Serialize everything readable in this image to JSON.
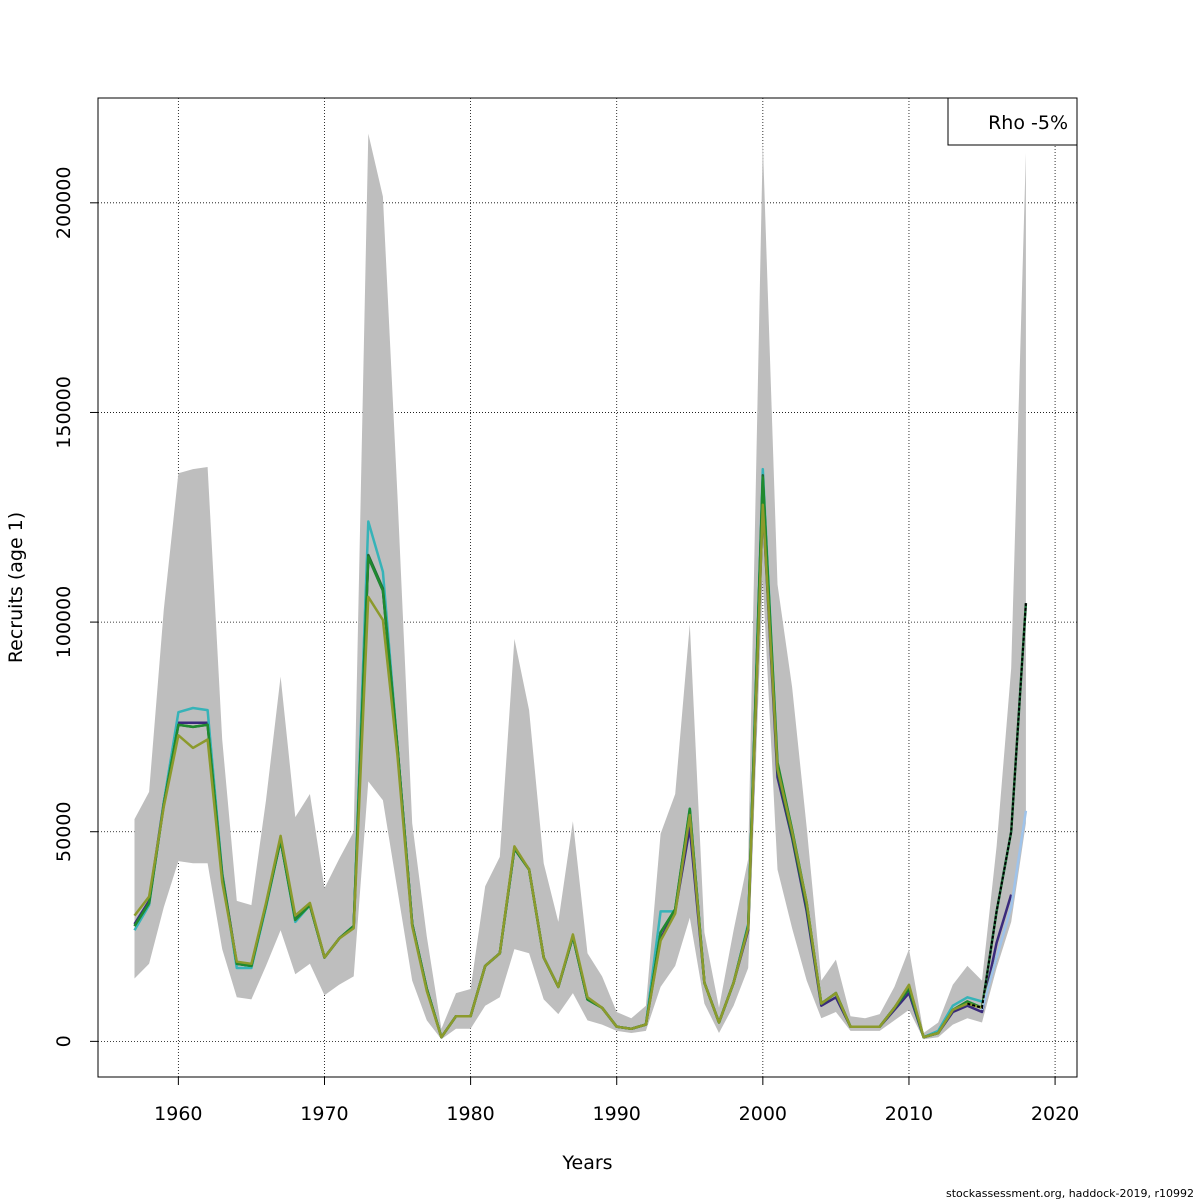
{
  "chart_data": {
    "type": "line",
    "xlabel": "Years",
    "ylabel": "Recruits (age 1)",
    "xlim": [
      1954.5,
      2021.5
    ],
    "ylim": [
      -8500,
      225000
    ],
    "x_ticks": [
      1960,
      1970,
      1980,
      1990,
      2000,
      2010,
      2020
    ],
    "y_ticks": [
      0,
      50000,
      100000,
      150000,
      200000
    ],
    "grid": true,
    "legend": {
      "position": "top-right",
      "text": "Rho -5%"
    },
    "footer": "stockassessment.org, haddock-2019, r10992",
    "confidence_band": {
      "years": [
        1957,
        1958,
        1959,
        1960,
        1961,
        1962,
        1963,
        1964,
        1965,
        1966,
        1967,
        1968,
        1969,
        1970,
        1971,
        1972,
        1973,
        1974,
        1975,
        1976,
        1977,
        1978,
        1979,
        1980,
        1981,
        1982,
        1983,
        1984,
        1985,
        1986,
        1987,
        1988,
        1989,
        1990,
        1991,
        1992,
        1993,
        1994,
        1995,
        1996,
        1997,
        1998,
        1999,
        2000,
        2001,
        2002,
        2003,
        2004,
        2005,
        2006,
        2007,
        2008,
        2009,
        2010,
        2011,
        2012,
        2013,
        2014,
        2015,
        2016,
        2017,
        2018
      ],
      "lower": [
        15000,
        18500,
        32000,
        43000,
        42500,
        42500,
        22000,
        10500,
        10000,
        18000,
        26500,
        16000,
        18500,
        11000,
        13500,
        15500,
        62000,
        57500,
        36000,
        14500,
        5000,
        500,
        3000,
        3000,
        8500,
        10500,
        22000,
        21000,
        10000,
        6500,
        11500,
        5000,
        4000,
        2500,
        2000,
        2500,
        13000,
        18000,
        29500,
        9000,
        2000,
        8500,
        17500,
        110000,
        41000,
        27000,
        14500,
        5500,
        7000,
        2500,
        2500,
        2500,
        5000,
        7500,
        500,
        1000,
        4000,
        5500,
        4500,
        17500,
        28500,
        52000
      ],
      "upper": [
        53000,
        59500,
        103000,
        135500,
        136500,
        137000,
        72000,
        33500,
        32500,
        57500,
        87000,
        53500,
        59000,
        36500,
        43500,
        50000,
        216500,
        201500,
        130000,
        52000,
        25000,
        3000,
        11500,
        12500,
        37000,
        44000,
        96000,
        79000,
        42500,
        28500,
        52500,
        21000,
        15500,
        7000,
        5500,
        8500,
        49500,
        59000,
        99500,
        26000,
        8000,
        26500,
        43500,
        214500,
        109000,
        84500,
        51000,
        14500,
        19500,
        6000,
        5500,
        6500,
        13000,
        22000,
        2000,
        4500,
        13500,
        18000,
        14500,
        46500,
        89000,
        212000
      ]
    },
    "series": [
      {
        "color": "#3a2a7c",
        "x": [
          1957,
          1958,
          1959,
          1960,
          1961,
          1962,
          1963,
          1964,
          1965,
          1966,
          1967,
          1968,
          1969,
          1970,
          1971,
          1972,
          1973,
          1974,
          1975,
          1976,
          1977,
          1978,
          1979,
          1980,
          1981,
          1982,
          1983,
          1984,
          1985,
          1986,
          1987,
          1988,
          1989,
          1990,
          1991,
          1992,
          1993,
          1994,
          1995,
          1996,
          1997,
          1998,
          1999,
          2000,
          2001,
          2002,
          2003,
          2004,
          2005,
          2006,
          2007,
          2008,
          2009,
          2010,
          2011,
          2012,
          2013,
          2014,
          2015,
          2016,
          2017
        ],
        "values": [
          28000,
          33500,
          57000,
          76000,
          76000,
          76000,
          40000,
          18500,
          18000,
          32500,
          48000,
          29500,
          32500,
          20000,
          24500,
          27500,
          115500,
          107500,
          70000,
          28000,
          12500,
          1000,
          6000,
          6000,
          18000,
          21000,
          46000,
          41000,
          20000,
          13000,
          25000,
          10000,
          8000,
          3500,
          3000,
          4000,
          24500,
          31000,
          51000,
          14000,
          4500,
          14000,
          26500,
          128000,
          63000,
          48500,
          31000,
          8500,
          10500,
          3500,
          3500,
          3500,
          7500,
          11500,
          1000,
          2000,
          7000,
          8500,
          7000,
          23500,
          35000
        ]
      },
      {
        "color": "#36b3b8",
        "x": [
          1957,
          1958,
          1959,
          1960,
          1961,
          1962,
          1963,
          1964,
          1965,
          1966,
          1967,
          1968,
          1969,
          1970,
          1971,
          1972,
          1973,
          1974,
          1975,
          1976,
          1977,
          1978,
          1979,
          1980,
          1981,
          1982,
          1983,
          1984,
          1985,
          1986,
          1987,
          1988,
          1989,
          1990,
          1991,
          1992,
          1993,
          1994,
          1995,
          1996,
          1997,
          1998,
          1999,
          2000,
          2001,
          2002,
          2003,
          2004,
          2005,
          2006,
          2007,
          2008,
          2009,
          2010,
          2011,
          2012,
          2013,
          2014,
          2015
        ],
        "values": [
          26500,
          32500,
          57000,
          78500,
          79500,
          79000,
          40000,
          17500,
          17500,
          32000,
          48000,
          28500,
          32500,
          20000,
          24500,
          27500,
          124000,
          112000,
          70000,
          28000,
          12500,
          1000,
          6000,
          6000,
          18000,
          21000,
          46000,
          41000,
          20000,
          13000,
          25000,
          10000,
          8000,
          3500,
          3000,
          4000,
          31000,
          31000,
          55500,
          14000,
          4500,
          14000,
          28000,
          136500,
          66000,
          50500,
          33000,
          9000,
          11500,
          3500,
          3500,
          3500,
          8000,
          12500,
          1000,
          2500,
          8500,
          10500,
          9500
        ]
      },
      {
        "color": "#1f6b3a",
        "x": [
          1957,
          1958,
          1959,
          1960,
          1961,
          1962,
          1963,
          1964,
          1965,
          1966,
          1967,
          1968,
          1969,
          1970,
          1971,
          1972,
          1973,
          1974,
          1975,
          1976,
          1977,
          1978,
          1979,
          1980,
          1981,
          1982,
          1983,
          1984,
          1985,
          1986,
          1987,
          1988,
          1989,
          1990,
          1991,
          1992,
          1993,
          1994,
          1995,
          1996,
          1997,
          1998,
          1999,
          2000,
          2001,
          2002,
          2003,
          2004,
          2005,
          2006,
          2007,
          2008,
          2009,
          2010,
          2011,
          2012,
          2013,
          2014,
          2015,
          2016,
          2017,
          2018
        ],
        "values": [
          27500,
          33000,
          56500,
          75500,
          75000,
          75500,
          39500,
          18500,
          18000,
          32500,
          48000,
          29000,
          32500,
          20000,
          24500,
          27500,
          116000,
          108000,
          70000,
          28000,
          12500,
          1000,
          6000,
          6000,
          18000,
          21000,
          46000,
          41000,
          20000,
          13000,
          25000,
          10000,
          8000,
          3500,
          3000,
          4000,
          26000,
          31500,
          55000,
          14000,
          4500,
          14000,
          27500,
          135000,
          64500,
          49000,
          32000,
          9000,
          11500,
          3500,
          3500,
          3500,
          8000,
          12500,
          1000,
          2000,
          7500,
          9500,
          8000,
          31000,
          50000,
          104500
        ]
      },
      {
        "color": "#1f8a2e",
        "x": [
          1957,
          1958,
          1959,
          1960,
          1961,
          1962,
          1963,
          1964,
          1965,
          1966,
          1967,
          1968,
          1969,
          1970,
          1971,
          1972,
          1973,
          1974,
          1975,
          1976,
          1977,
          1978,
          1979,
          1980,
          1981,
          1982,
          1983,
          1984,
          1985,
          1986,
          1987,
          1988,
          1989,
          1990,
          1991,
          1992,
          1993,
          1994,
          1995,
          1996,
          1997,
          1998,
          1999,
          2000,
          2001,
          2002,
          2003,
          2004,
          2005,
          2006,
          2007,
          2008,
          2009,
          2010,
          2011,
          2012,
          2013,
          2014,
          2015
        ],
        "values": [
          27500,
          33000,
          56500,
          75500,
          75000,
          75500,
          39500,
          18500,
          18000,
          32500,
          48000,
          29000,
          32500,
          20000,
          24500,
          27500,
          115500,
          107500,
          70000,
          28000,
          12500,
          1000,
          6000,
          6000,
          18000,
          21000,
          46000,
          41000,
          20000,
          13000,
          25000,
          10000,
          8000,
          3500,
          3000,
          4000,
          26000,
          31500,
          55500,
          14000,
          4500,
          14000,
          27500,
          134500,
          66500,
          50500,
          33000,
          9000,
          11500,
          3500,
          3500,
          3500,
          8000,
          13000,
          1000,
          2000,
          7500,
          9500,
          8000
        ]
      },
      {
        "color": "#8c9a2c",
        "x": [
          1957,
          1958,
          1959,
          1960,
          1961,
          1962,
          1963,
          1964,
          1965,
          1966,
          1967,
          1968,
          1969,
          1970,
          1971,
          1972,
          1973,
          1974,
          1975,
          1976,
          1977,
          1978,
          1979,
          1980,
          1981,
          1982,
          1983,
          1984,
          1985,
          1986,
          1987,
          1988,
          1989,
          1990,
          1991,
          1992,
          1993,
          1994,
          1995,
          1996,
          1997,
          1998,
          1999,
          2000,
          2001,
          2002,
          2003,
          2004,
          2005,
          2006,
          2007,
          2008,
          2009,
          2010,
          2011,
          2012,
          2013,
          2014,
          2015,
          2016
        ],
        "values": [
          30000,
          34500,
          56000,
          73000,
          70000,
          72000,
          38000,
          19000,
          18500,
          33000,
          49000,
          30000,
          33000,
          20000,
          24500,
          27000,
          106000,
          100500,
          68000,
          27500,
          12000,
          1000,
          6000,
          6000,
          18000,
          21000,
          46500,
          41000,
          20000,
          13000,
          25500,
          10500,
          8000,
          3500,
          3000,
          4000,
          24000,
          30500,
          54000,
          14000,
          4500,
          14000,
          27000,
          128000,
          65000,
          50000,
          33000,
          9000,
          11500,
          3500,
          3500,
          3500,
          8000,
          13500,
          1000,
          2000,
          7500,
          9000,
          8000,
          20000
        ]
      },
      {
        "color": "#9fc3ea",
        "x": [
          2015,
          2016,
          2017,
          2018
        ],
        "values": [
          7500,
          20000,
          32000,
          55000
        ]
      }
    ],
    "point_estimate": {
      "color": "#000000",
      "x": [
        2014,
        2015,
        2016,
        2017,
        2018
      ],
      "values": [
        9000,
        8000,
        31000,
        50000,
        104500
      ]
    }
  }
}
